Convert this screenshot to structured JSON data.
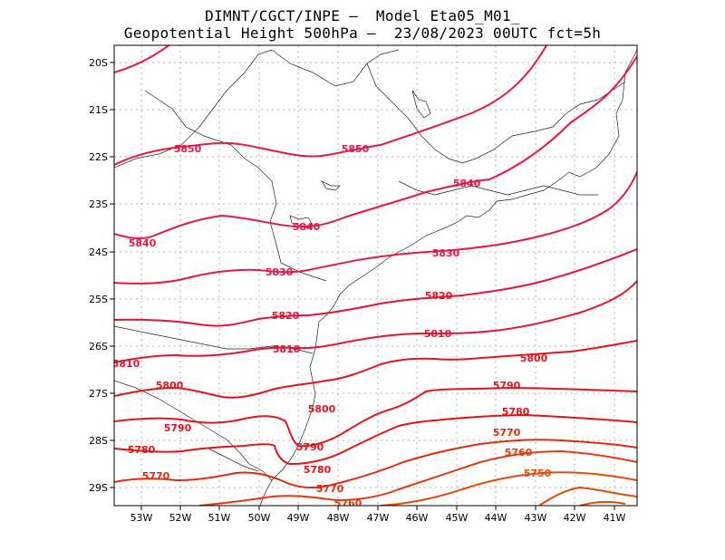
{
  "title_line1": "DIMNT/CGCT/INPE –  Model Eta05_M01_",
  "title_line2": "Geopotential Height 500hPa –  23/08/2023 00UTC fct=5h",
  "map": {
    "lon_range": [
      -53.6,
      -40.5
    ],
    "lat_range": [
      -29.4,
      -19.6
    ],
    "x_ticks": [
      "53W",
      "52W",
      "51W",
      "50W",
      "49W",
      "48W",
      "47W",
      "46W",
      "45W",
      "44W",
      "43W",
      "42W",
      "41W"
    ],
    "x_tick_values": [
      -53,
      -52,
      -51,
      -50,
      -49,
      -48,
      -47,
      -46,
      -45,
      -44,
      -43,
      -42,
      -41
    ],
    "y_ticks": [
      "20S",
      "21S",
      "22S",
      "23S",
      "24S",
      "25S",
      "26S",
      "27S",
      "28S",
      "29S"
    ],
    "y_tick_values": [
      -20,
      -21,
      -22,
      -23,
      -24,
      -25,
      -26,
      -27,
      -28,
      -29
    ],
    "contour_labels": [
      "5850",
      "5850",
      "5840",
      "5840",
      "5840",
      "5830",
      "5830",
      "5820",
      "5820",
      "5810",
      "5810",
      "5810",
      "5800",
      "5800",
      "5800",
      "5790",
      "5790",
      "5790",
      "5780",
      "5780",
      "5780",
      "5770",
      "5770",
      "5770",
      "5760",
      "5760",
      "5750"
    ],
    "contour_colors": {
      "5850": "#e8174a",
      "5840": "#e8174a",
      "5830": "#e8174a",
      "5820": "#e51433",
      "5810": "#e51433",
      "5800": "#e3141f",
      "5790": "#e3141f",
      "5780": "#e11414",
      "5770": "#e22a0f",
      "5760": "#e33a0d",
      "5750": "#e5490b"
    }
  }
}
